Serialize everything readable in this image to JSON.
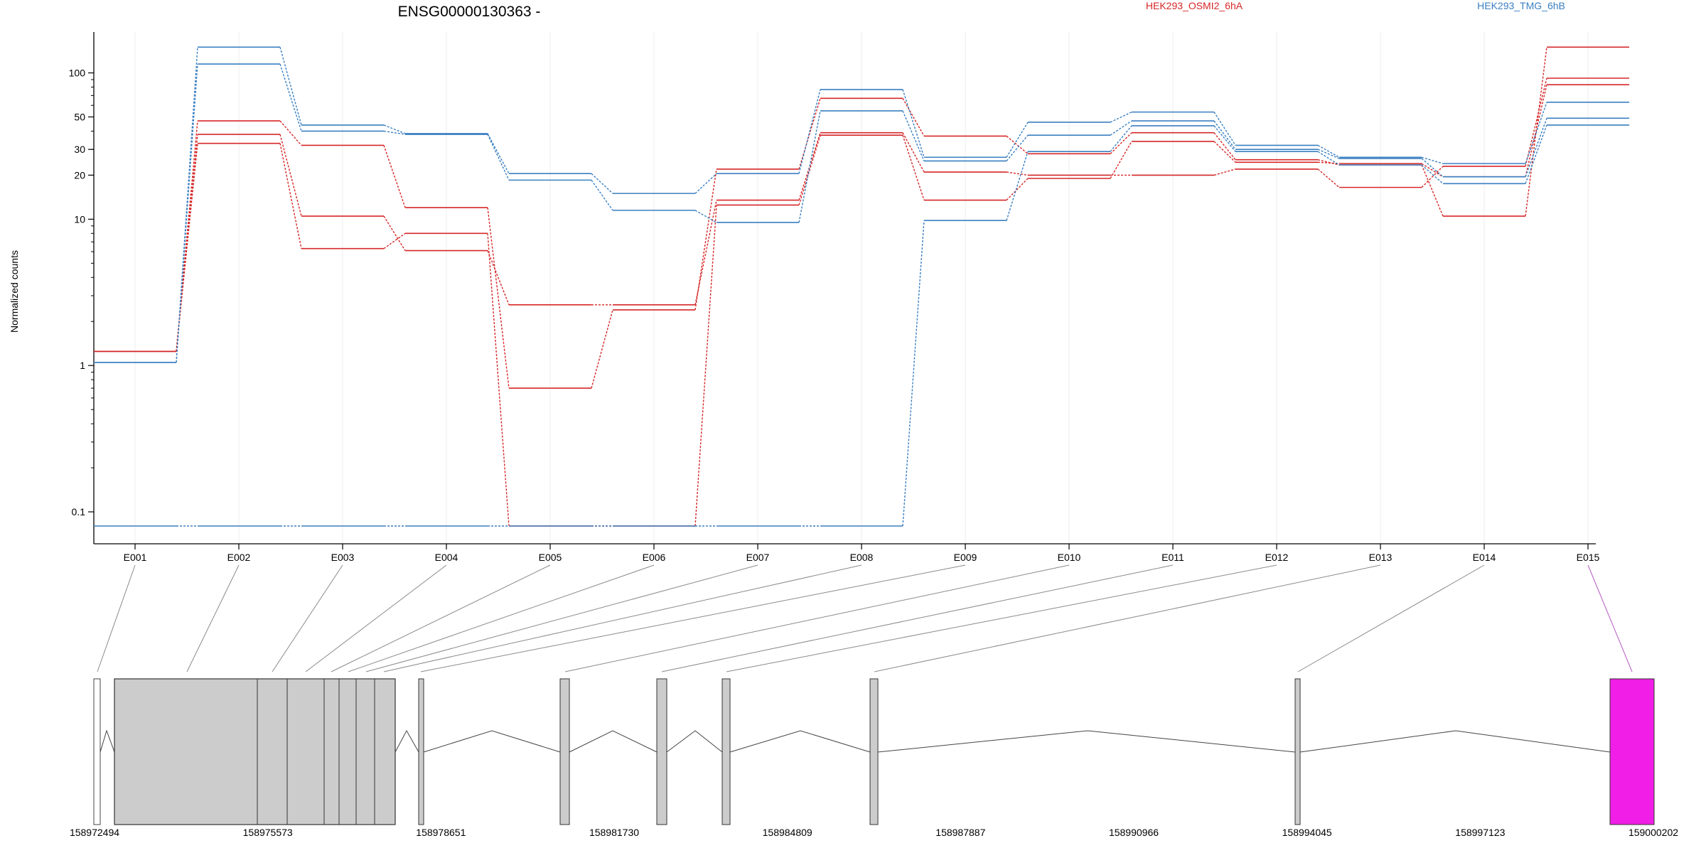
{
  "chart_data": {
    "type": "line",
    "title": "ENSG00000130363 -",
    "ylabel": "Normalized counts",
    "xlabel": "",
    "yscale": "log",
    "ylim": [
      0.08,
      180
    ],
    "yticks": [
      0.1,
      1,
      10,
      20,
      30,
      50,
      100
    ],
    "ytick_labels": [
      "0.1",
      "1",
      "10",
      "20",
      "30",
      "50",
      "100"
    ],
    "categories": [
      "E001",
      "E002",
      "E003",
      "E004",
      "E005",
      "E006",
      "E007",
      "E008",
      "E009",
      "E010",
      "E011",
      "E012",
      "E013",
      "E014",
      "E015"
    ],
    "grid": true,
    "legend_placement": "top",
    "legend": [
      {
        "name": "HEK293_OSMI2_6hA",
        "color": "#d62728"
      },
      {
        "name": "HEK293_TMG_6hB",
        "color": "#3a7fc1"
      }
    ],
    "series": [
      {
        "group": "HEK293_OSMI2_6hA",
        "values": [
          1.25,
          47,
          32,
          12,
          0.7,
          2.4,
          22,
          67,
          37,
          28,
          39,
          25.5,
          23.5,
          10.5,
          150
        ]
      },
      {
        "group": "HEK293_OSMI2_6hA",
        "values": [
          1.25,
          38,
          10.5,
          6.1,
          2.6,
          2.6,
          13.5,
          39,
          21,
          20,
          20,
          22,
          16.5,
          23,
          92
        ]
      },
      {
        "group": "HEK293_OSMI2_6hA",
        "values": [
          1.25,
          33,
          6.3,
          8.0,
          0.08,
          0.08,
          12.5,
          37.5,
          13.5,
          19,
          34,
          24.5,
          24,
          19.5,
          83
        ]
      },
      {
        "group": "HEK293_TMG_6hB",
        "values": [
          1.05,
          150,
          44,
          38.5,
          20.5,
          15,
          20.5,
          77,
          26.5,
          46,
          54,
          32,
          26.5,
          24,
          63
        ]
      },
      {
        "group": "HEK293_TMG_6hB",
        "values": [
          1.05,
          115,
          40,
          38,
          18.5,
          11.5,
          9.5,
          55,
          25,
          37.5,
          47,
          30,
          26,
          19.5,
          49
        ]
      },
      {
        "group": "HEK293_TMG_6hB",
        "values": [
          0.08,
          0.08,
          0.08,
          0.08,
          0.08,
          0.08,
          0.08,
          0.08,
          9.8,
          29,
          43.5,
          29,
          23.5,
          17.5,
          44
        ]
      }
    ],
    "genome": {
      "coordinate_labels": [
        "158972494",
        "158975573",
        "158978651",
        "158981730",
        "158984809",
        "158987887",
        "158990966",
        "158994045",
        "158997123",
        "159000202"
      ],
      "highlighted_exon": "E015",
      "highlight_color": "#f01ee6",
      "exon_color": "#cccccc"
    }
  }
}
